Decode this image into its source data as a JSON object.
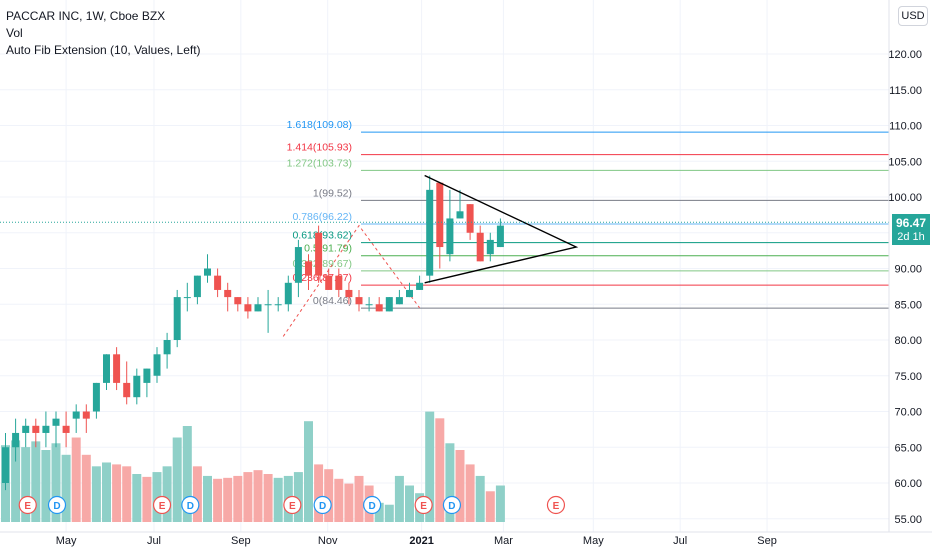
{
  "legend": {
    "line1": "PACCAR INC, 1W, Cboe BZX",
    "line2": "Vol",
    "line3": "Auto Fib Extension (10, Values, Left)"
  },
  "currency": "USD",
  "last_price": {
    "value": "96.47",
    "countdown": "2d 1h"
  },
  "colors": {
    "up": "#26a69a",
    "down": "#ef5350",
    "up_vol": "#8fd0c8",
    "down_vol": "#f7a9a7",
    "grid": "#f0f3fa"
  },
  "chart_data": {
    "type": "candlestick",
    "y_ticks": [
      55,
      60,
      65,
      70,
      75,
      80,
      85,
      90,
      95,
      100,
      105,
      110,
      115,
      120
    ],
    "y_tick_labels": [
      "55.00",
      "60.00",
      "65.00",
      "70.00",
      "75.00",
      "80.00",
      "85.00",
      "90.00",
      "95.00",
      "100.00",
      "105.00",
      "110.00",
      "115.00",
      "120.00"
    ],
    "ylim": [
      54.5,
      125
    ],
    "x_labels": [
      {
        "label": "May",
        "week": 6
      },
      {
        "label": "Jul",
        "week": 14.7
      },
      {
        "label": "Sep",
        "week": 23.3
      },
      {
        "label": "Nov",
        "week": 31.9
      },
      {
        "label": "2021",
        "week": 41.2
      },
      {
        "label": "Mar",
        "week": 49.3
      },
      {
        "label": "May",
        "week": 58.2
      },
      {
        "label": "Jul",
        "week": 66.8
      },
      {
        "label": "Sep",
        "week": 75.4
      }
    ],
    "candles": [
      {
        "o": 60,
        "h": 67,
        "c": 65,
        "l": 59
      },
      {
        "o": 65,
        "h": 69,
        "c": 67,
        "l": 63
      },
      {
        "o": 67,
        "h": 69,
        "c": 68,
        "l": 65
      },
      {
        "o": 68,
        "h": 69,
        "c": 67,
        "l": 65
      },
      {
        "o": 67,
        "h": 70,
        "c": 68,
        "l": 65
      },
      {
        "o": 68,
        "h": 70,
        "c": 69,
        "l": 65
      },
      {
        "o": 68,
        "h": 70,
        "c": 67,
        "l": 65
      },
      {
        "o": 69,
        "h": 71,
        "c": 70,
        "l": 67
      },
      {
        "o": 70,
        "h": 71,
        "c": 69,
        "l": 67
      },
      {
        "o": 70,
        "h": 74,
        "c": 74,
        "l": 69
      },
      {
        "o": 74,
        "h": 78,
        "c": 78,
        "l": 73
      },
      {
        "o": 78,
        "h": 79,
        "c": 74,
        "l": 73
      },
      {
        "o": 74,
        "h": 77,
        "c": 72,
        "l": 71
      },
      {
        "o": 72,
        "h": 76,
        "c": 75,
        "l": 71
      },
      {
        "o": 74,
        "h": 76,
        "c": 76,
        "l": 72
      },
      {
        "o": 75,
        "h": 79,
        "c": 78,
        "l": 74
      },
      {
        "o": 78,
        "h": 81,
        "c": 80,
        "l": 76
      },
      {
        "o": 80,
        "h": 87,
        "c": 86,
        "l": 79
      },
      {
        "o": 86,
        "h": 88,
        "c": 86,
        "l": 84
      },
      {
        "o": 86,
        "h": 89,
        "c": 89,
        "l": 85
      },
      {
        "o": 89,
        "h": 92,
        "c": 90,
        "l": 88
      },
      {
        "o": 89,
        "h": 90,
        "c": 87,
        "l": 86
      },
      {
        "o": 87,
        "h": 88,
        "c": 86,
        "l": 84
      },
      {
        "o": 86,
        "h": 86,
        "c": 85,
        "l": 84
      },
      {
        "o": 85,
        "h": 86,
        "c": 84,
        "l": 83
      },
      {
        "o": 84,
        "h": 86,
        "c": 85,
        "l": 84
      },
      {
        "o": 85,
        "h": 87,
        "c": 85,
        "l": 81
      },
      {
        "o": 85,
        "h": 86,
        "c": 85,
        "l": 84
      },
      {
        "o": 85,
        "h": 89,
        "c": 88,
        "l": 84
      },
      {
        "o": 88,
        "h": 94,
        "c": 93,
        "l": 86
      },
      {
        "o": 91,
        "h": 92,
        "c": 89,
        "l": 87
      },
      {
        "o": 95,
        "h": 96,
        "c": 89,
        "l": 88
      },
      {
        "o": 89,
        "h": 90,
        "c": 87,
        "l": 87
      },
      {
        "o": 89,
        "h": 90,
        "c": 87,
        "l": 86
      },
      {
        "o": 87,
        "h": 88,
        "c": 86,
        "l": 85
      },
      {
        "o": 86,
        "h": 87,
        "c": 85,
        "l": 84
      },
      {
        "o": 85,
        "h": 86,
        "c": 85,
        "l": 84
      },
      {
        "o": 85,
        "h": 86,
        "c": 84,
        "l": 84
      },
      {
        "o": 84,
        "h": 86,
        "c": 86,
        "l": 84
      },
      {
        "o": 85,
        "h": 87,
        "c": 86,
        "l": 85
      },
      {
        "o": 86,
        "h": 88,
        "c": 87,
        "l": 86
      },
      {
        "o": 87,
        "h": 89,
        "c": 88,
        "l": 87
      },
      {
        "o": 89,
        "h": 103,
        "c": 101,
        "l": 88
      },
      {
        "o": 102,
        "h": 102,
        "c": 93,
        "l": 90
      },
      {
        "o": 92,
        "h": 101,
        "c": 97,
        "l": 91
      },
      {
        "o": 97,
        "h": 101,
        "c": 98,
        "l": 97
      },
      {
        "o": 99,
        "h": 99,
        "c": 95,
        "l": 94
      },
      {
        "o": 95,
        "h": 96,
        "c": 91,
        "l": 91
      },
      {
        "o": 92,
        "h": 95,
        "c": 94,
        "l": 91
      },
      {
        "o": 93,
        "h": 97,
        "c": 96,
        "l": 93
      }
    ],
    "volume": [
      {
        "v": 80,
        "up": true
      },
      {
        "v": 85,
        "up": true
      },
      {
        "v": 78,
        "up": true
      },
      {
        "v": 84,
        "up": true
      },
      {
        "v": 75,
        "up": true
      },
      {
        "v": 82,
        "up": true
      },
      {
        "v": 70,
        "up": true
      },
      {
        "v": 88,
        "up": false
      },
      {
        "v": 70,
        "up": false
      },
      {
        "v": 58,
        "up": true
      },
      {
        "v": 62,
        "up": true
      },
      {
        "v": 60,
        "up": false
      },
      {
        "v": 58,
        "up": false
      },
      {
        "v": 50,
        "up": true
      },
      {
        "v": 47,
        "up": false
      },
      {
        "v": 52,
        "up": true
      },
      {
        "v": 58,
        "up": true
      },
      {
        "v": 88,
        "up": true
      },
      {
        "v": 100,
        "up": true
      },
      {
        "v": 58,
        "up": false
      },
      {
        "v": 48,
        "up": true
      },
      {
        "v": 45,
        "up": false
      },
      {
        "v": 46,
        "up": false
      },
      {
        "v": 48,
        "up": false
      },
      {
        "v": 52,
        "up": false
      },
      {
        "v": 54,
        "up": false
      },
      {
        "v": 50,
        "up": false
      },
      {
        "v": 46,
        "up": true
      },
      {
        "v": 48,
        "up": true
      },
      {
        "v": 52,
        "up": true
      },
      {
        "v": 105,
        "up": true
      },
      {
        "v": 60,
        "up": false
      },
      {
        "v": 55,
        "up": false
      },
      {
        "v": 45,
        "up": false
      },
      {
        "v": 40,
        "up": false
      },
      {
        "v": 48,
        "up": false
      },
      {
        "v": 38,
        "up": false
      },
      {
        "v": 20,
        "up": true
      },
      {
        "v": 18,
        "up": true
      },
      {
        "v": 48,
        "up": true
      },
      {
        "v": 38,
        "up": true
      },
      {
        "v": 30,
        "up": true
      },
      {
        "v": 115,
        "up": true
      },
      {
        "v": 108,
        "up": false
      },
      {
        "v": 82,
        "up": true
      },
      {
        "v": 75,
        "up": false
      },
      {
        "v": 60,
        "up": false
      },
      {
        "v": 48,
        "up": true
      },
      {
        "v": 32,
        "up": false
      },
      {
        "v": 38,
        "up": true
      }
    ],
    "fib_levels": [
      {
        "label": "0",
        "value": "84.46",
        "price": 84.46,
        "color": "#787b86"
      },
      {
        "label": "0.236",
        "value": "87.67",
        "price": 87.67,
        "color": "#f23645"
      },
      {
        "label": "0.382",
        "value": "89.67",
        "price": 89.67,
        "color": "#81c784"
      },
      {
        "label": "0.5",
        "value": "91.79",
        "price": 91.79,
        "color": "#4caf50"
      },
      {
        "label": "0.618",
        "value": "93.62",
        "price": 93.62,
        "color": "#089981"
      },
      {
        "label": "0.786",
        "value": "96.22",
        "price": 96.22,
        "color": "#64b5f6"
      },
      {
        "label": "1",
        "value": "99.52",
        "price": 99.52,
        "color": "#787b86"
      },
      {
        "label": "1.272",
        "value": "103.73",
        "price": 103.73,
        "color": "#81c784"
      },
      {
        "label": "1.414",
        "value": "105.93",
        "price": 105.93,
        "color": "#f23645"
      },
      {
        "label": "1.618",
        "value": "109.08",
        "price": 109.08,
        "color": "#2196f3"
      }
    ],
    "earnings_markers": [
      {
        "type": "E",
        "week": 2.2
      },
      {
        "type": "D",
        "week": 5.1
      },
      {
        "type": "E",
        "week": 15.5
      },
      {
        "type": "D",
        "week": 18.3
      },
      {
        "type": "E",
        "week": 28.4
      },
      {
        "type": "D",
        "week": 31.4
      },
      {
        "type": "D",
        "week": 36.3
      },
      {
        "type": "E",
        "week": 41.4
      },
      {
        "type": "D",
        "week": 44.2
      },
      {
        "type": "E",
        "week": 54.5
      }
    ],
    "triangle": {
      "apex_week": 56.5,
      "apex_price": 93,
      "top_week": 41.5,
      "top_price": 103,
      "bottom_week": 41.5,
      "bottom_price": 88
    }
  }
}
